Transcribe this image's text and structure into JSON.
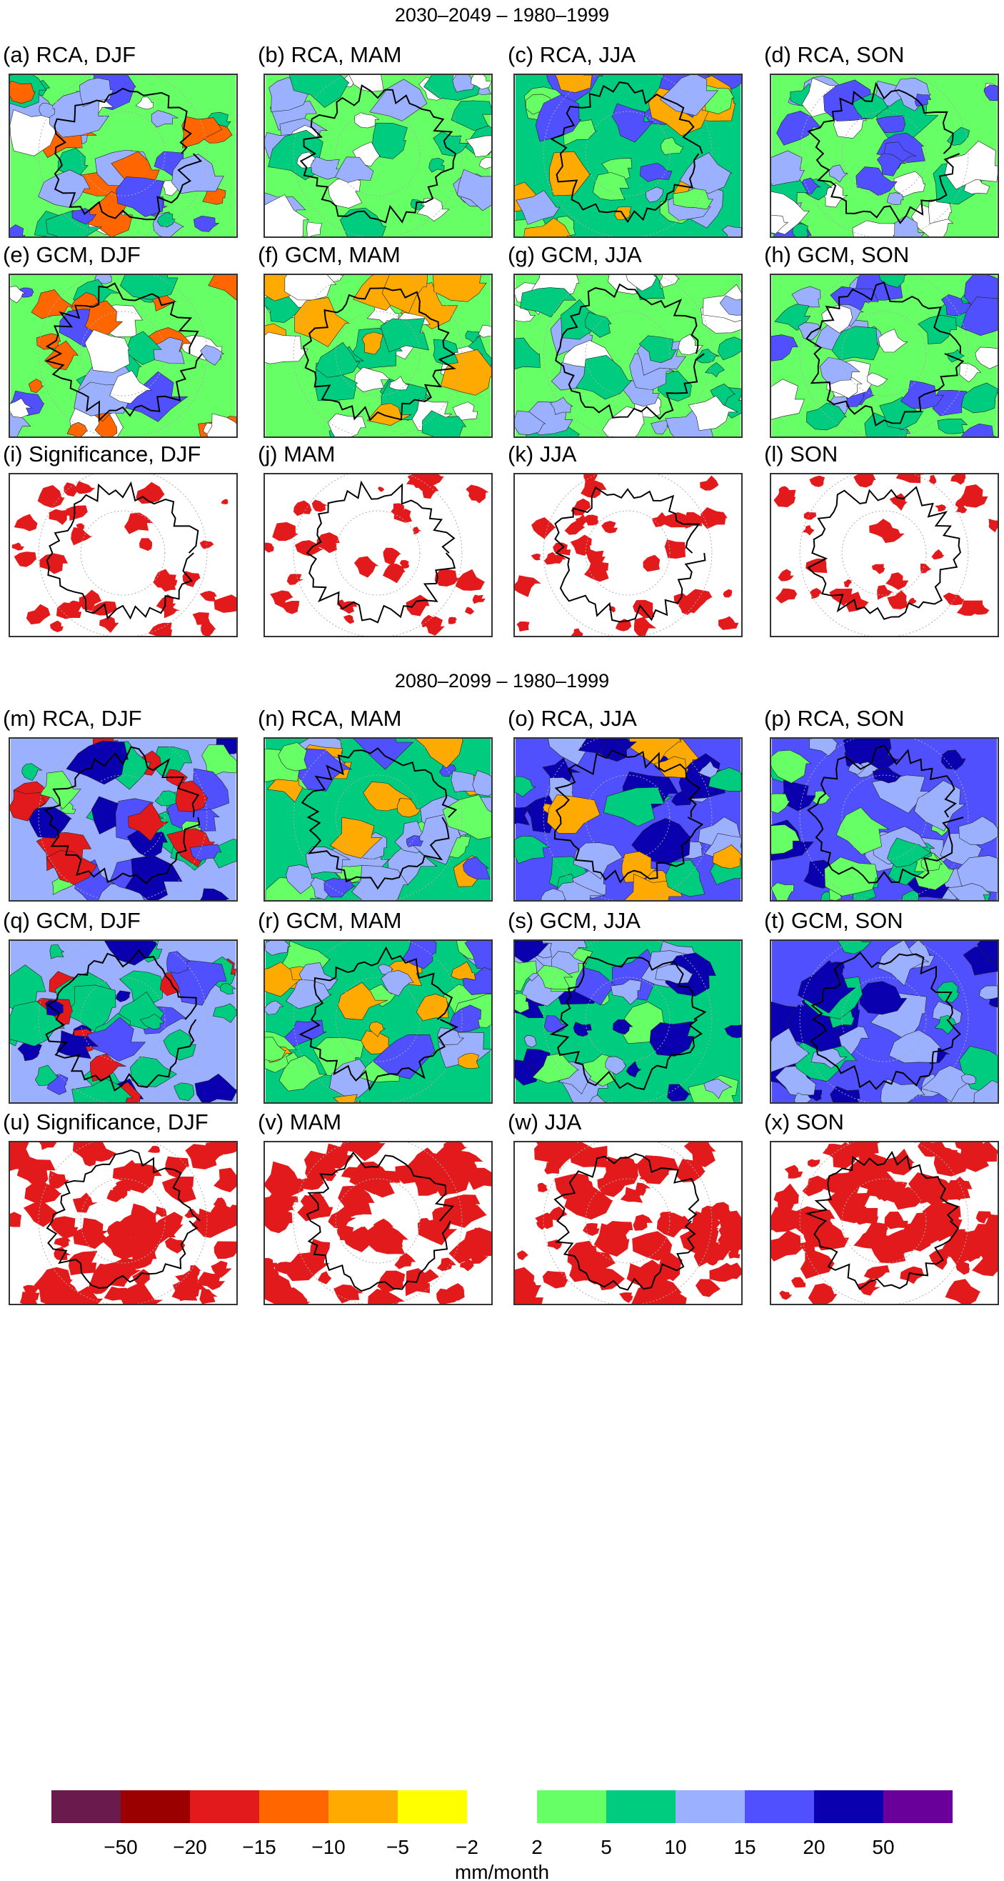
{
  "section_titles": [
    "2030–2049 – 1980–1999",
    "2080–2099 – 1980–1999"
  ],
  "panels": [
    {
      "label": "(a) RCA, DJF",
      "base": "#66ff66",
      "blobs": [
        "#00cc7f",
        "#ffffff",
        "#9bb0ff",
        "#5050ff",
        "#ff6600"
      ]
    },
    {
      "label": "(b) RCA, MAM",
      "base": "#66ff66",
      "blobs": [
        "#00cc7f",
        "#ffffff",
        "#9bb0ff"
      ]
    },
    {
      "label": "(c) RCA, JJA",
      "base": "#00cc7f",
      "blobs": [
        "#66ff66",
        "#9bb0ff",
        "#5050ff",
        "#ffaa00"
      ]
    },
    {
      "label": "(d) RCA, SON",
      "base": "#66ff66",
      "blobs": [
        "#00cc7f",
        "#9bb0ff",
        "#5050ff",
        "#ffffff"
      ]
    },
    {
      "label": "(e) GCM, DJF",
      "base": "#66ff66",
      "blobs": [
        "#00cc7f",
        "#ffffff",
        "#9bb0ff",
        "#5050ff",
        "#ff6600"
      ]
    },
    {
      "label": "(f) GCM, MAM",
      "base": "#66ff66",
      "blobs": [
        "#00cc7f",
        "#ffffff",
        "#ffaa00"
      ]
    },
    {
      "label": "(g) GCM, JJA",
      "base": "#66ff66",
      "blobs": [
        "#00cc7f",
        "#ffffff",
        "#9bb0ff"
      ]
    },
    {
      "label": "(h) GCM, SON",
      "base": "#66ff66",
      "blobs": [
        "#00cc7f",
        "#ffffff",
        "#9bb0ff",
        "#5050ff"
      ]
    },
    {
      "label": "(i) Significance, DJF",
      "base": "#ffffff",
      "blobs": [
        "#e31a1c"
      ],
      "sig": true
    },
    {
      "label": "(j) MAM",
      "base": "#ffffff",
      "blobs": [
        "#e31a1c"
      ],
      "sig": true
    },
    {
      "label": "(k) JJA",
      "base": "#ffffff",
      "blobs": [
        "#e31a1c"
      ],
      "sig": true
    },
    {
      "label": "(l) SON",
      "base": "#ffffff",
      "blobs": [
        "#e31a1c"
      ],
      "sig": true
    },
    {
      "label": "(m) RCA, DJF",
      "base": "#9bb0ff",
      "blobs": [
        "#5050ff",
        "#0a00b0",
        "#00cc7f",
        "#66ff66",
        "#e31a1c"
      ]
    },
    {
      "label": "(n) RCA, MAM",
      "base": "#00cc7f",
      "blobs": [
        "#9bb0ff",
        "#5050ff",
        "#66ff66",
        "#ffaa00"
      ]
    },
    {
      "label": "(o) RCA, JJA",
      "base": "#5050ff",
      "blobs": [
        "#9bb0ff",
        "#0a00b0",
        "#00cc7f",
        "#ffaa00"
      ]
    },
    {
      "label": "(p) RCA, SON",
      "base": "#5050ff",
      "blobs": [
        "#9bb0ff",
        "#0a00b0",
        "#00cc7f",
        "#66ff66"
      ]
    },
    {
      "label": "(q) GCM, DJF",
      "base": "#9bb0ff",
      "blobs": [
        "#5050ff",
        "#0a00b0",
        "#00cc7f",
        "#e31a1c"
      ]
    },
    {
      "label": "(r) GCM, MAM",
      "base": "#00cc7f",
      "blobs": [
        "#9bb0ff",
        "#5050ff",
        "#66ff66",
        "#ffaa00"
      ]
    },
    {
      "label": "(s) GCM, JJA",
      "base": "#00cc7f",
      "blobs": [
        "#9bb0ff",
        "#5050ff",
        "#0a00b0",
        "#66ff66"
      ]
    },
    {
      "label": "(t) GCM, SON",
      "base": "#5050ff",
      "blobs": [
        "#9bb0ff",
        "#0a00b0",
        "#00cc7f"
      ]
    },
    {
      "label": "(u) Significance, DJF",
      "base": "#ffffff",
      "blobs": [
        "#e31a1c"
      ],
      "sig": true,
      "dense": true
    },
    {
      "label": "(v) MAM",
      "base": "#ffffff",
      "blobs": [
        "#e31a1c"
      ],
      "sig": true,
      "dense": true
    },
    {
      "label": "(w) JJA",
      "base": "#ffffff",
      "blobs": [
        "#e31a1c"
      ],
      "sig": true,
      "dense": true
    },
    {
      "label": "(x) SON",
      "base": "#ffffff",
      "blobs": [
        "#e31a1c"
      ],
      "sig": true,
      "dense": true
    }
  ],
  "colorbar": {
    "colors": [
      "#6b1a4d",
      "#9b0000",
      "#e31a1c",
      "#ff6600",
      "#ffaa00",
      "#ffff00",
      "#66ff66",
      "#00cc7f",
      "#9bb0ff",
      "#5050ff",
      "#0a00b0",
      "#6a0099"
    ],
    "ticks": [
      "−50",
      "−20",
      "−15",
      "−10",
      "−5",
      "−2",
      "2",
      "5",
      "10",
      "15",
      "20",
      "50"
    ],
    "unit": "mm/month"
  }
}
